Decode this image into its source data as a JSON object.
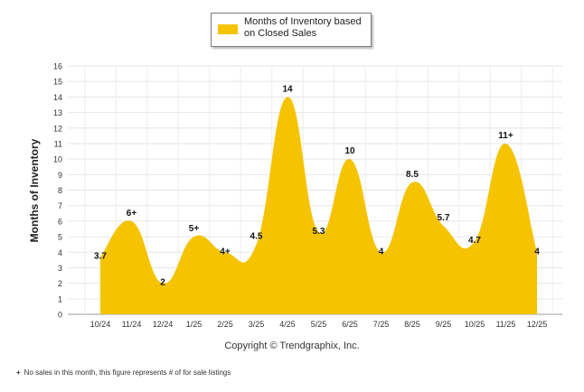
{
  "chart_data": {
    "type": "area",
    "categories": [
      "10/24",
      "11/24",
      "12/24",
      "1/25",
      "2/25",
      "3/25",
      "4/25",
      "5/25",
      "6/25",
      "7/25",
      "8/25",
      "9/25",
      "10/25",
      "11/25",
      "12/25"
    ],
    "series": [
      {
        "name": "Months of Inventory based on Closed Sales",
        "values": [
          3.7,
          6,
          2,
          5,
          4,
          4.5,
          14,
          5.3,
          10,
          4,
          8.5,
          5.7,
          4.7,
          11,
          4
        ],
        "labels": [
          "3.7",
          "6+",
          "2",
          "5+",
          "4+",
          "4.5",
          "14",
          "5.3",
          "10",
          "4",
          "8.5",
          "5.7",
          "4.7",
          "11+",
          "4"
        ],
        "color": "#f5c300"
      }
    ],
    "ylabel": "Months of Inventory",
    "xlabel": "",
    "ylim": [
      0,
      16
    ],
    "yticks": [
      0,
      1,
      2,
      3,
      4,
      5,
      6,
      7,
      8,
      9,
      10,
      11,
      12,
      13,
      14,
      15,
      16
    ],
    "grid": true,
    "legend_position": "top-center"
  },
  "legend": {
    "label": "Months of Inventory based on Closed Sales",
    "color": "#f5c300"
  },
  "copyright": "Copyright © Trendgraphix, Inc.",
  "footnote": {
    "mark": "+",
    "text": "No sales in this month, this figure represents # of for sale listings"
  }
}
